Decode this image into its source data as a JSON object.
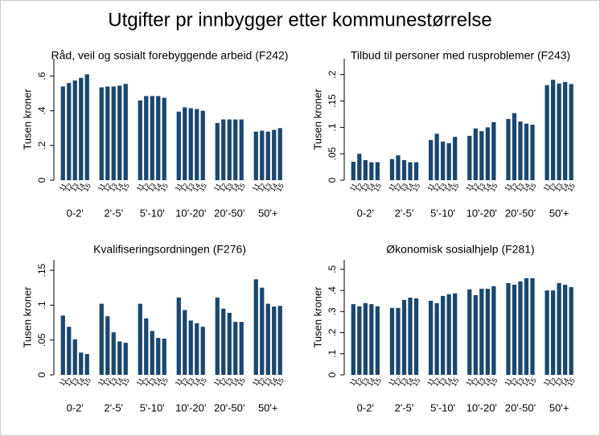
{
  "title": "Utgifter pr innbygger etter kommunestørrelse",
  "chart_data": [
    {
      "type": "bar",
      "title": "Råd, veil og sosialt forebyggende arbeid (F242)",
      "y_label": "Tusen kroner",
      "color": "#1a476f",
      "categories": [
        "0-2'",
        "2'-5'",
        "5'-10'",
        "10'-20'",
        "20'-50'",
        "50'+"
      ],
      "bar_labels": [
        "11",
        "12",
        "13",
        "14",
        "15"
      ],
      "values": [
        [
          0.54,
          0.56,
          0.575,
          0.59,
          0.61
        ],
        [
          0.535,
          0.54,
          0.54,
          0.545,
          0.555
        ],
        [
          0.46,
          0.485,
          0.485,
          0.485,
          0.475
        ],
        [
          0.395,
          0.42,
          0.415,
          0.41,
          0.4
        ],
        [
          0.33,
          0.35,
          0.35,
          0.35,
          0.35
        ],
        [
          0.28,
          0.285,
          0.28,
          0.29,
          0.3
        ]
      ],
      "ylim": [
        0,
        0.7
      ],
      "yticks": [
        0,
        {
          "value": 0.2,
          "label": ".2"
        },
        {
          "value": 0.4,
          "label": ".4"
        },
        {
          "value": 0.6,
          "label": ".6"
        }
      ]
    },
    {
      "type": "bar",
      "title": "Tilbud til personer med rusproblemer (F243)",
      "y_label": "Tusen kroner",
      "color": "#1a476f",
      "categories": [
        "0-2'",
        "2'-5'",
        "5'-10'",
        "10'-20'",
        "20'-50'",
        "50'+"
      ],
      "bar_labels": [
        "11",
        "12",
        "13",
        "14",
        "15"
      ],
      "values": [
        [
          0.035,
          0.05,
          0.038,
          0.034,
          0.034
        ],
        [
          0.04,
          0.047,
          0.038,
          0.034,
          0.034
        ],
        [
          0.076,
          0.088,
          0.073,
          0.07,
          0.082
        ],
        [
          0.084,
          0.098,
          0.093,
          0.1,
          0.11
        ],
        [
          0.116,
          0.127,
          0.111,
          0.107,
          0.105
        ],
        [
          0.18,
          0.19,
          0.183,
          0.186,
          0.182
        ]
      ],
      "ylim": [
        0,
        0.23
      ],
      "yticks": [
        0,
        {
          "value": 0.05,
          "label": ".05"
        },
        {
          "value": 0.1,
          "label": ".1"
        },
        {
          "value": 0.15,
          "label": ".15"
        },
        {
          "value": 0.2,
          "label": ".2"
        }
      ]
    },
    {
      "type": "bar",
      "title": "Kvalifiseringsordningen (F276)",
      "y_label": "Tusen kroner",
      "color": "#1a476f",
      "categories": [
        "0-2'",
        "2'-5'",
        "5'-10'",
        "10'-20'",
        "20'-50'",
        "50'+"
      ],
      "bar_labels": [
        "11",
        "12",
        "13",
        "14",
        "15"
      ],
      "values": [
        [
          0.085,
          0.069,
          0.051,
          0.032,
          0.03
        ],
        [
          0.102,
          0.084,
          0.061,
          0.048,
          0.046
        ],
        [
          0.102,
          0.081,
          0.063,
          0.053,
          0.052
        ],
        [
          0.111,
          0.093,
          0.078,
          0.074,
          0.069
        ],
        [
          0.111,
          0.095,
          0.089,
          0.076,
          0.076
        ],
        [
          0.137,
          0.125,
          0.102,
          0.098,
          0.099
        ]
      ],
      "ylim": [
        0,
        0.165
      ],
      "yticks": [
        0,
        {
          "value": 0.05,
          "label": ".05"
        },
        {
          "value": 0.1,
          "label": ".1"
        },
        {
          "value": 0.15,
          "label": ".15"
        }
      ]
    },
    {
      "type": "bar",
      "title": "Økonomisk sosialhjelp (F281)",
      "y_label": "Tusen kroner",
      "color": "#1a476f",
      "categories": [
        "0-2'",
        "2'-5'",
        "5'-10'",
        "10'-20'",
        "20'-50'",
        "50'+"
      ],
      "bar_labels": [
        "11",
        "12",
        "13",
        "14",
        "15"
      ],
      "values": [
        [
          0.335,
          0.325,
          0.34,
          0.335,
          0.325
        ],
        [
          0.317,
          0.317,
          0.355,
          0.366,
          0.362
        ],
        [
          0.351,
          0.34,
          0.374,
          0.382,
          0.386
        ],
        [
          0.405,
          0.378,
          0.408,
          0.408,
          0.42
        ],
        [
          0.435,
          0.427,
          0.443,
          0.458,
          0.458
        ],
        [
          0.4,
          0.4,
          0.435,
          0.427,
          0.416
        ]
      ],
      "ylim": [
        0,
        0.545
      ],
      "yticks": [
        0,
        {
          "value": 0.1,
          "label": ".1"
        },
        {
          "value": 0.2,
          "label": ".2"
        },
        {
          "value": 0.3,
          "label": ".3"
        },
        {
          "value": 0.4,
          "label": ".4"
        },
        {
          "value": 0.5,
          "label": ".5"
        }
      ]
    }
  ]
}
